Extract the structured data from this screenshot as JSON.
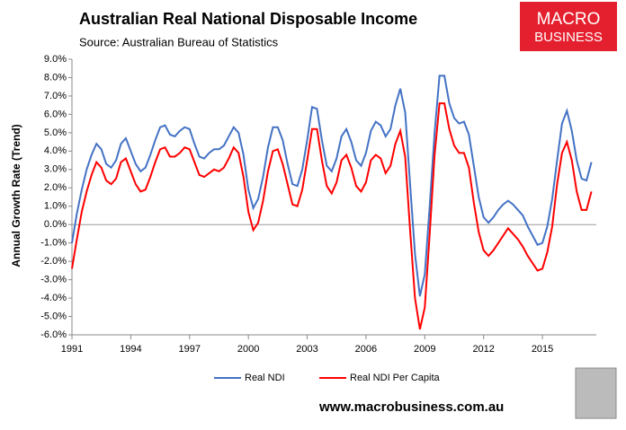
{
  "chart_data": {
    "type": "line",
    "title": "Australian Real National Disposable Income",
    "subtitle": "Source: Australian Bureau of Statistics",
    "y_label": "Annual Growth Rate (Trend)",
    "brand": {
      "line1": "MACRO",
      "line2": "BUSINESS"
    },
    "footer": "www.macrobusiness.com.au",
    "legend": "bottom",
    "grid": false,
    "xlim": [
      1991,
      2017.75
    ],
    "xticks": [
      1991,
      1994,
      1997,
      2000,
      2003,
      2006,
      2009,
      2012,
      2015
    ],
    "ylim": [
      -6,
      9
    ],
    "yticks": [
      {
        "value": 9,
        "label": "9.0%"
      },
      {
        "value": 8,
        "label": "8.0%"
      },
      {
        "value": 7,
        "label": "7.0%"
      },
      {
        "value": 6,
        "label": "6.0%"
      },
      {
        "value": 5,
        "label": "5.0%"
      },
      {
        "value": 4,
        "label": "4.0%"
      },
      {
        "value": 3,
        "label": "3.0%"
      },
      {
        "value": 2,
        "label": "2.0%"
      },
      {
        "value": 1,
        "label": "1.0%"
      },
      {
        "value": 0,
        "label": "0.0%"
      },
      {
        "value": -1,
        "label": "-1.0%"
      },
      {
        "value": -2,
        "label": "-2.0%"
      },
      {
        "value": -3,
        "label": "-3.0%"
      },
      {
        "value": -4,
        "label": "-4.0%"
      },
      {
        "value": -5,
        "label": "-5.0%"
      },
      {
        "value": -6,
        "label": "-6.0%"
      }
    ],
    "x": [
      1991,
      1991.25,
      1991.5,
      1991.75,
      1992,
      1992.25,
      1992.5,
      1992.75,
      1993,
      1993.25,
      1993.5,
      1993.75,
      1994,
      1994.25,
      1994.5,
      1994.75,
      1995,
      1995.25,
      1995.5,
      1995.75,
      1996,
      1996.25,
      1996.5,
      1996.75,
      1997,
      1997.25,
      1997.5,
      1997.75,
      1998,
      1998.25,
      1998.5,
      1998.75,
      1999,
      1999.25,
      1999.5,
      1999.75,
      2000,
      2000.25,
      2000.5,
      2000.75,
      2001,
      2001.25,
      2001.5,
      2001.75,
      2002,
      2002.25,
      2002.5,
      2002.75,
      2003,
      2003.25,
      2003.5,
      2003.75,
      2004,
      2004.25,
      2004.5,
      2004.75,
      2005,
      2005.25,
      2005.5,
      2005.75,
      2006,
      2006.25,
      2006.5,
      2006.75,
      2007,
      2007.25,
      2007.5,
      2007.75,
      2008,
      2008.25,
      2008.5,
      2008.75,
      2009,
      2009.25,
      2009.5,
      2009.75,
      2010,
      2010.25,
      2010.5,
      2010.75,
      2011,
      2011.25,
      2011.5,
      2011.75,
      2012,
      2012.25,
      2012.5,
      2012.75,
      2013,
      2013.25,
      2013.5,
      2013.75,
      2014,
      2014.25,
      2014.5,
      2014.75,
      2015,
      2015.25,
      2015.5,
      2015.75,
      2016,
      2016.25,
      2016.5,
      2016.75,
      2017,
      2017.25,
      2017.5
    ],
    "series": [
      {
        "name": "Real NDI",
        "color": "#4472c4",
        "values": [
          -1.0,
          0.6,
          1.9,
          3.0,
          3.8,
          4.4,
          4.1,
          3.3,
          3.1,
          3.5,
          4.4,
          4.7,
          4.0,
          3.3,
          2.9,
          3.1,
          3.8,
          4.6,
          5.3,
          5.4,
          4.9,
          4.8,
          5.1,
          5.3,
          5.2,
          4.4,
          3.7,
          3.6,
          3.9,
          4.1,
          4.1,
          4.3,
          4.8,
          5.3,
          5.0,
          3.8,
          1.9,
          0.9,
          1.4,
          2.6,
          4.2,
          5.3,
          5.3,
          4.6,
          3.3,
          2.2,
          2.1,
          3.0,
          4.6,
          6.4,
          6.3,
          4.6,
          3.2,
          2.9,
          3.6,
          4.8,
          5.2,
          4.5,
          3.5,
          3.2,
          3.9,
          5.1,
          5.6,
          5.4,
          4.8,
          5.2,
          6.5,
          7.4,
          6.1,
          2.2,
          -1.6,
          -3.9,
          -2.7,
          1.0,
          5.0,
          8.1,
          8.1,
          6.6,
          5.8,
          5.5,
          5.6,
          4.9,
          3.2,
          1.5,
          0.4,
          0.1,
          0.4,
          0.8,
          1.1,
          1.3,
          1.1,
          0.8,
          0.5,
          -0.1,
          -0.6,
          -1.1,
          -1.0,
          -0.1,
          1.4,
          3.5,
          5.5,
          6.2,
          5.1,
          3.5,
          2.5,
          2.4,
          3.4
        ]
      },
      {
        "name": "Real NDI Per Capita",
        "color": "#ff0000",
        "values": [
          -2.4,
          -0.8,
          0.7,
          1.8,
          2.7,
          3.4,
          3.1,
          2.4,
          2.2,
          2.5,
          3.4,
          3.6,
          2.9,
          2.2,
          1.8,
          1.9,
          2.6,
          3.4,
          4.1,
          4.2,
          3.7,
          3.7,
          3.9,
          4.2,
          4.1,
          3.4,
          2.7,
          2.6,
          2.8,
          3.0,
          2.9,
          3.1,
          3.6,
          4.2,
          3.9,
          2.6,
          0.7,
          -0.3,
          0.1,
          1.3,
          2.9,
          4.0,
          4.1,
          3.3,
          2.2,
          1.1,
          1.0,
          1.9,
          3.5,
          5.2,
          5.2,
          3.5,
          2.1,
          1.7,
          2.3,
          3.5,
          3.8,
          3.1,
          2.1,
          1.8,
          2.3,
          3.5,
          3.8,
          3.6,
          2.8,
          3.2,
          4.4,
          5.1,
          3.7,
          -0.3,
          -4.0,
          -5.7,
          -4.5,
          -0.5,
          3.8,
          6.6,
          6.6,
          5.2,
          4.3,
          3.9,
          3.9,
          3.1,
          1.2,
          -0.4,
          -1.4,
          -1.7,
          -1.4,
          -1.0,
          -0.6,
          -0.2,
          -0.5,
          -0.8,
          -1.2,
          -1.7,
          -2.1,
          -2.5,
          -2.4,
          -1.5,
          -0.1,
          2.2,
          3.9,
          4.5,
          3.5,
          1.8,
          0.8,
          0.8,
          1.8
        ]
      }
    ]
  }
}
